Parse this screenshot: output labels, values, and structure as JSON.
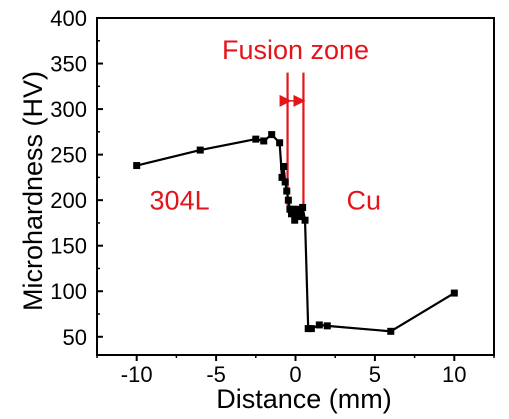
{
  "chart_data": {
    "type": "scatter",
    "xlabel": "Distance (mm)",
    "ylabel": "Microhardness (HV)",
    "xlim": [
      -12.5,
      12.5
    ],
    "ylim": [
      30,
      400
    ],
    "x_ticks": [
      {
        "value": -10,
        "label": "-10"
      },
      {
        "value": -5,
        "label": "-5"
      },
      {
        "value": 0,
        "label": "0"
      },
      {
        "value": 5,
        "label": "5"
      },
      {
        "value": 10,
        "label": "10"
      }
    ],
    "y_ticks": [
      {
        "value": 50,
        "label": "50"
      },
      {
        "value": 100,
        "label": "100"
      },
      {
        "value": 150,
        "label": "150"
      },
      {
        "value": 200,
        "label": "200"
      },
      {
        "value": 250,
        "label": "250"
      },
      {
        "value": 300,
        "label": "300"
      },
      {
        "value": 350,
        "label": "350"
      },
      {
        "value": 400,
        "label": "400"
      }
    ],
    "series": [
      {
        "color": "#000000",
        "marker": "square",
        "points": [
          {
            "x": -10,
            "y": 238
          },
          {
            "x": -6,
            "y": 255
          },
          {
            "x": -2.5,
            "y": 267
          },
          {
            "x": -2,
            "y": 265
          },
          {
            "x": -1.5,
            "y": 272
          },
          {
            "x": -1,
            "y": 263
          },
          {
            "x": -0.85,
            "y": 225
          },
          {
            "x": -0.75,
            "y": 237
          },
          {
            "x": -0.65,
            "y": 220
          },
          {
            "x": -0.55,
            "y": 210
          },
          {
            "x": -0.45,
            "y": 200
          },
          {
            "x": -0.35,
            "y": 190
          },
          {
            "x": -0.25,
            "y": 185
          },
          {
            "x": -0.15,
            "y": 190
          },
          {
            "x": -0.05,
            "y": 178
          },
          {
            "x": 0.05,
            "y": 183
          },
          {
            "x": 0.15,
            "y": 190
          },
          {
            "x": 0.25,
            "y": 182
          },
          {
            "x": 0.35,
            "y": 186
          },
          {
            "x": 0.45,
            "y": 192
          },
          {
            "x": 0.6,
            "y": 178
          },
          {
            "x": 0.8,
            "y": 59
          },
          {
            "x": 1,
            "y": 59
          },
          {
            "x": 1.5,
            "y": 63
          },
          {
            "x": 2,
            "y": 62
          },
          {
            "x": 6,
            "y": 56
          },
          {
            "x": 10,
            "y": 98
          }
        ]
      }
    ],
    "annotations": {
      "fusion_zone_label": "Fusion zone",
      "fusion_zone_x": [
        -0.5,
        0.5
      ],
      "left_material": "304L",
      "right_material": "Cu",
      "left_material_pos": {
        "x": -7.3,
        "y": 190
      },
      "right_material_pos": {
        "x": 4.3,
        "y": 190
      },
      "fusion_zone_label_pos": {
        "x": 0,
        "y": 355
      },
      "fusion_zone_arrow_y": 309,
      "fusion_zone_line_top": 340
    },
    "colors": {
      "annotation": "#e4141b",
      "axis": "#000000",
      "series": "#000000"
    },
    "grid": false
  }
}
